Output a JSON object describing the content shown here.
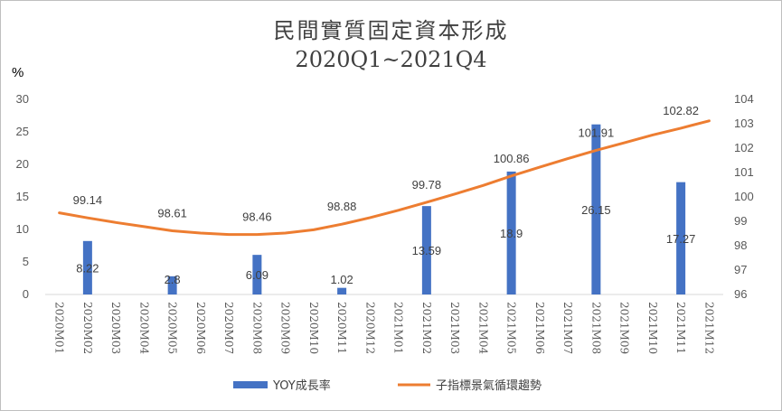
{
  "chart_data": {
    "type": "bar",
    "title": "民間實質固定資本形成",
    "subtitle": "2020Q1~2021Q4",
    "y_left_unit": "%",
    "y_left_range": [
      0,
      30
    ],
    "y_left_ticks": [
      "0",
      "5",
      "10",
      "15",
      "20",
      "25",
      "30"
    ],
    "y_right_range": [
      96,
      104
    ],
    "y_right_ticks": [
      "96",
      "97",
      "98",
      "99",
      "100",
      "101",
      "102",
      "103",
      "104"
    ],
    "categories": [
      "2020M01",
      "2020M02",
      "2020M03",
      "2020M04",
      "2020M05",
      "2020M06",
      "2020M07",
      "2020M08",
      "2020M09",
      "2020M10",
      "2020M11",
      "2020M12",
      "2021M01",
      "2021M02",
      "2021M03",
      "2021M04",
      "2021M05",
      "2021M06",
      "2021M07",
      "2021M08",
      "2021M09",
      "2021M10",
      "2021M11",
      "2021M12"
    ],
    "bar_series": {
      "name": "YOY成長率",
      "color": "#4472c4",
      "axis": "left",
      "points": [
        {
          "category": "2020M02",
          "value": 8.22,
          "label": "8.22"
        },
        {
          "category": "2020M05",
          "value": 2.8,
          "label": "2.8"
        },
        {
          "category": "2020M08",
          "value": 6.09,
          "label": "6.09"
        },
        {
          "category": "2020M11",
          "value": 1.02,
          "label": "1.02"
        },
        {
          "category": "2021M02",
          "value": 13.59,
          "label": "13.59"
        },
        {
          "category": "2021M05",
          "value": 18.9,
          "label": "18.9"
        },
        {
          "category": "2021M08",
          "value": 26.15,
          "label": "26.15"
        },
        {
          "category": "2021M11",
          "value": 17.27,
          "label": "17.27"
        }
      ]
    },
    "line_series": {
      "name": "子指標景氣循環趨勢",
      "color": "#ed7d31",
      "axis": "right",
      "values": [
        99.35,
        99.14,
        98.95,
        98.78,
        98.61,
        98.52,
        98.46,
        98.46,
        98.52,
        98.65,
        98.88,
        99.15,
        99.45,
        99.78,
        100.12,
        100.47,
        100.86,
        101.22,
        101.57,
        101.91,
        102.22,
        102.54,
        102.82,
        103.12
      ],
      "labels": [
        {
          "category": "2020M02",
          "text": "99.14"
        },
        {
          "category": "2020M05",
          "text": "98.61"
        },
        {
          "category": "2020M08",
          "text": "98.46"
        },
        {
          "category": "2020M11",
          "text": "98.88"
        },
        {
          "category": "2021M02",
          "text": "99.78"
        },
        {
          "category": "2021M05",
          "text": "100.86"
        },
        {
          "category": "2021M08",
          "text": "101.91"
        },
        {
          "category": "2021M11",
          "text": "102.82"
        }
      ]
    },
    "grid": false,
    "legend_position": "bottom"
  }
}
